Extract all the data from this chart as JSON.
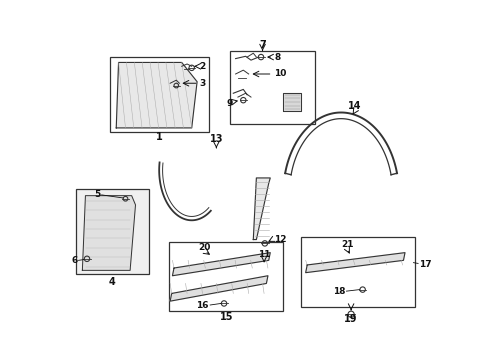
{
  "background_color": "#ffffff",
  "fig_width": 4.89,
  "fig_height": 3.6,
  "dpi": 100,
  "lc": "#333333",
  "bc": "#333333",
  "label_fs": 7,
  "small_fs": 6.5
}
